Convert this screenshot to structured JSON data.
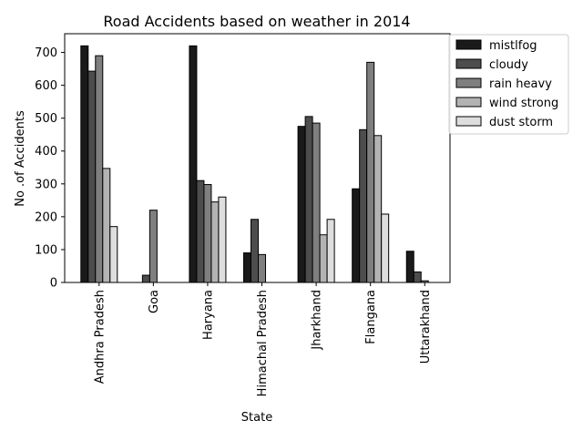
{
  "chart_data": {
    "type": "bar",
    "title": "Road Accidents based on weather in 2014",
    "xlabel": "State",
    "ylabel": "No .of Accidents",
    "ylim": [
      0,
      757
    ],
    "yticks": [
      0,
      100,
      200,
      300,
      400,
      500,
      600,
      700
    ],
    "grid": false,
    "legend_position": "outside-upper-right",
    "categories": [
      "Andhra Pradesh",
      "Goa",
      "Haryana",
      "Himachal Pradesh",
      "Jharkhand",
      "Flangana",
      "Uttarakhand"
    ],
    "series": [
      {
        "name": "mistlfog",
        "color": "#1a1a1a",
        "values": [
          720,
          0,
          720,
          90,
          475,
          285,
          95
        ]
      },
      {
        "name": "cloudy",
        "color": "#4d4d4d",
        "values": [
          643,
          22,
          310,
          192,
          505,
          465,
          32
        ]
      },
      {
        "name": "rain heavy",
        "color": "#7f7f7f",
        "values": [
          690,
          220,
          298,
          85,
          485,
          670,
          5
        ]
      },
      {
        "name": "wind strong",
        "color": "#b3b3b3",
        "values": [
          347,
          0,
          245,
          0,
          145,
          447,
          0
        ]
      },
      {
        "name": "dust storm",
        "color": "#dedede",
        "values": [
          170,
          0,
          260,
          0,
          192,
          208,
          0
        ]
      }
    ]
  }
}
